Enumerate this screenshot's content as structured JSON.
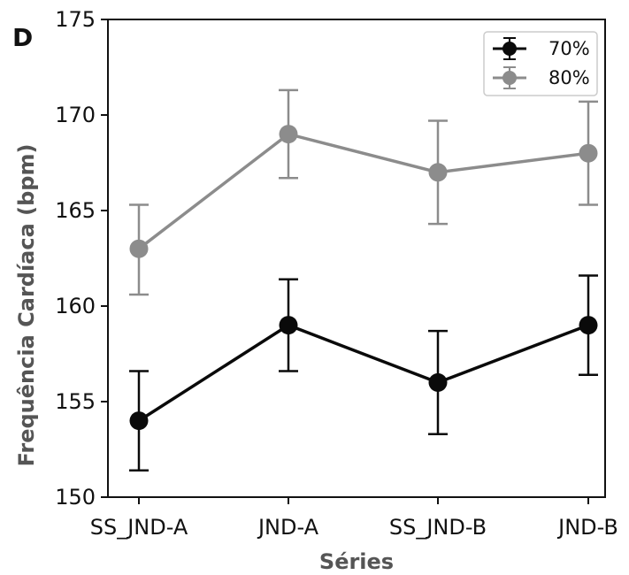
{
  "panel_label": "D",
  "colors": {
    "series_70": "#0a0a0a",
    "series_80": "#8c8c8c",
    "axes": "#111111",
    "background": "#ffffff"
  },
  "chart_data": {
    "type": "line",
    "title": "",
    "xlabel": "Séries",
    "ylabel": "Frequência Cardíaca (bpm)",
    "categories": [
      "SS_JND-A",
      "JND-A",
      "SS_JND-B",
      "JND-B"
    ],
    "ylim": [
      150,
      175
    ],
    "yticks": [
      150,
      155,
      160,
      165,
      170,
      175
    ],
    "grid": false,
    "legend_position": "top-right",
    "series": [
      {
        "name": "70%",
        "color": "#0a0a0a",
        "values": [
          154,
          159,
          156,
          159
        ],
        "error_low": [
          151.4,
          156.6,
          153.3,
          156.4
        ],
        "error_high": [
          156.6,
          161.4,
          158.7,
          161.6
        ]
      },
      {
        "name": "80%",
        "color": "#8c8c8c",
        "values": [
          163,
          169,
          167,
          168
        ],
        "error_low": [
          160.6,
          166.7,
          164.3,
          165.3
        ],
        "error_high": [
          165.3,
          171.3,
          169.7,
          170.7
        ]
      }
    ]
  }
}
